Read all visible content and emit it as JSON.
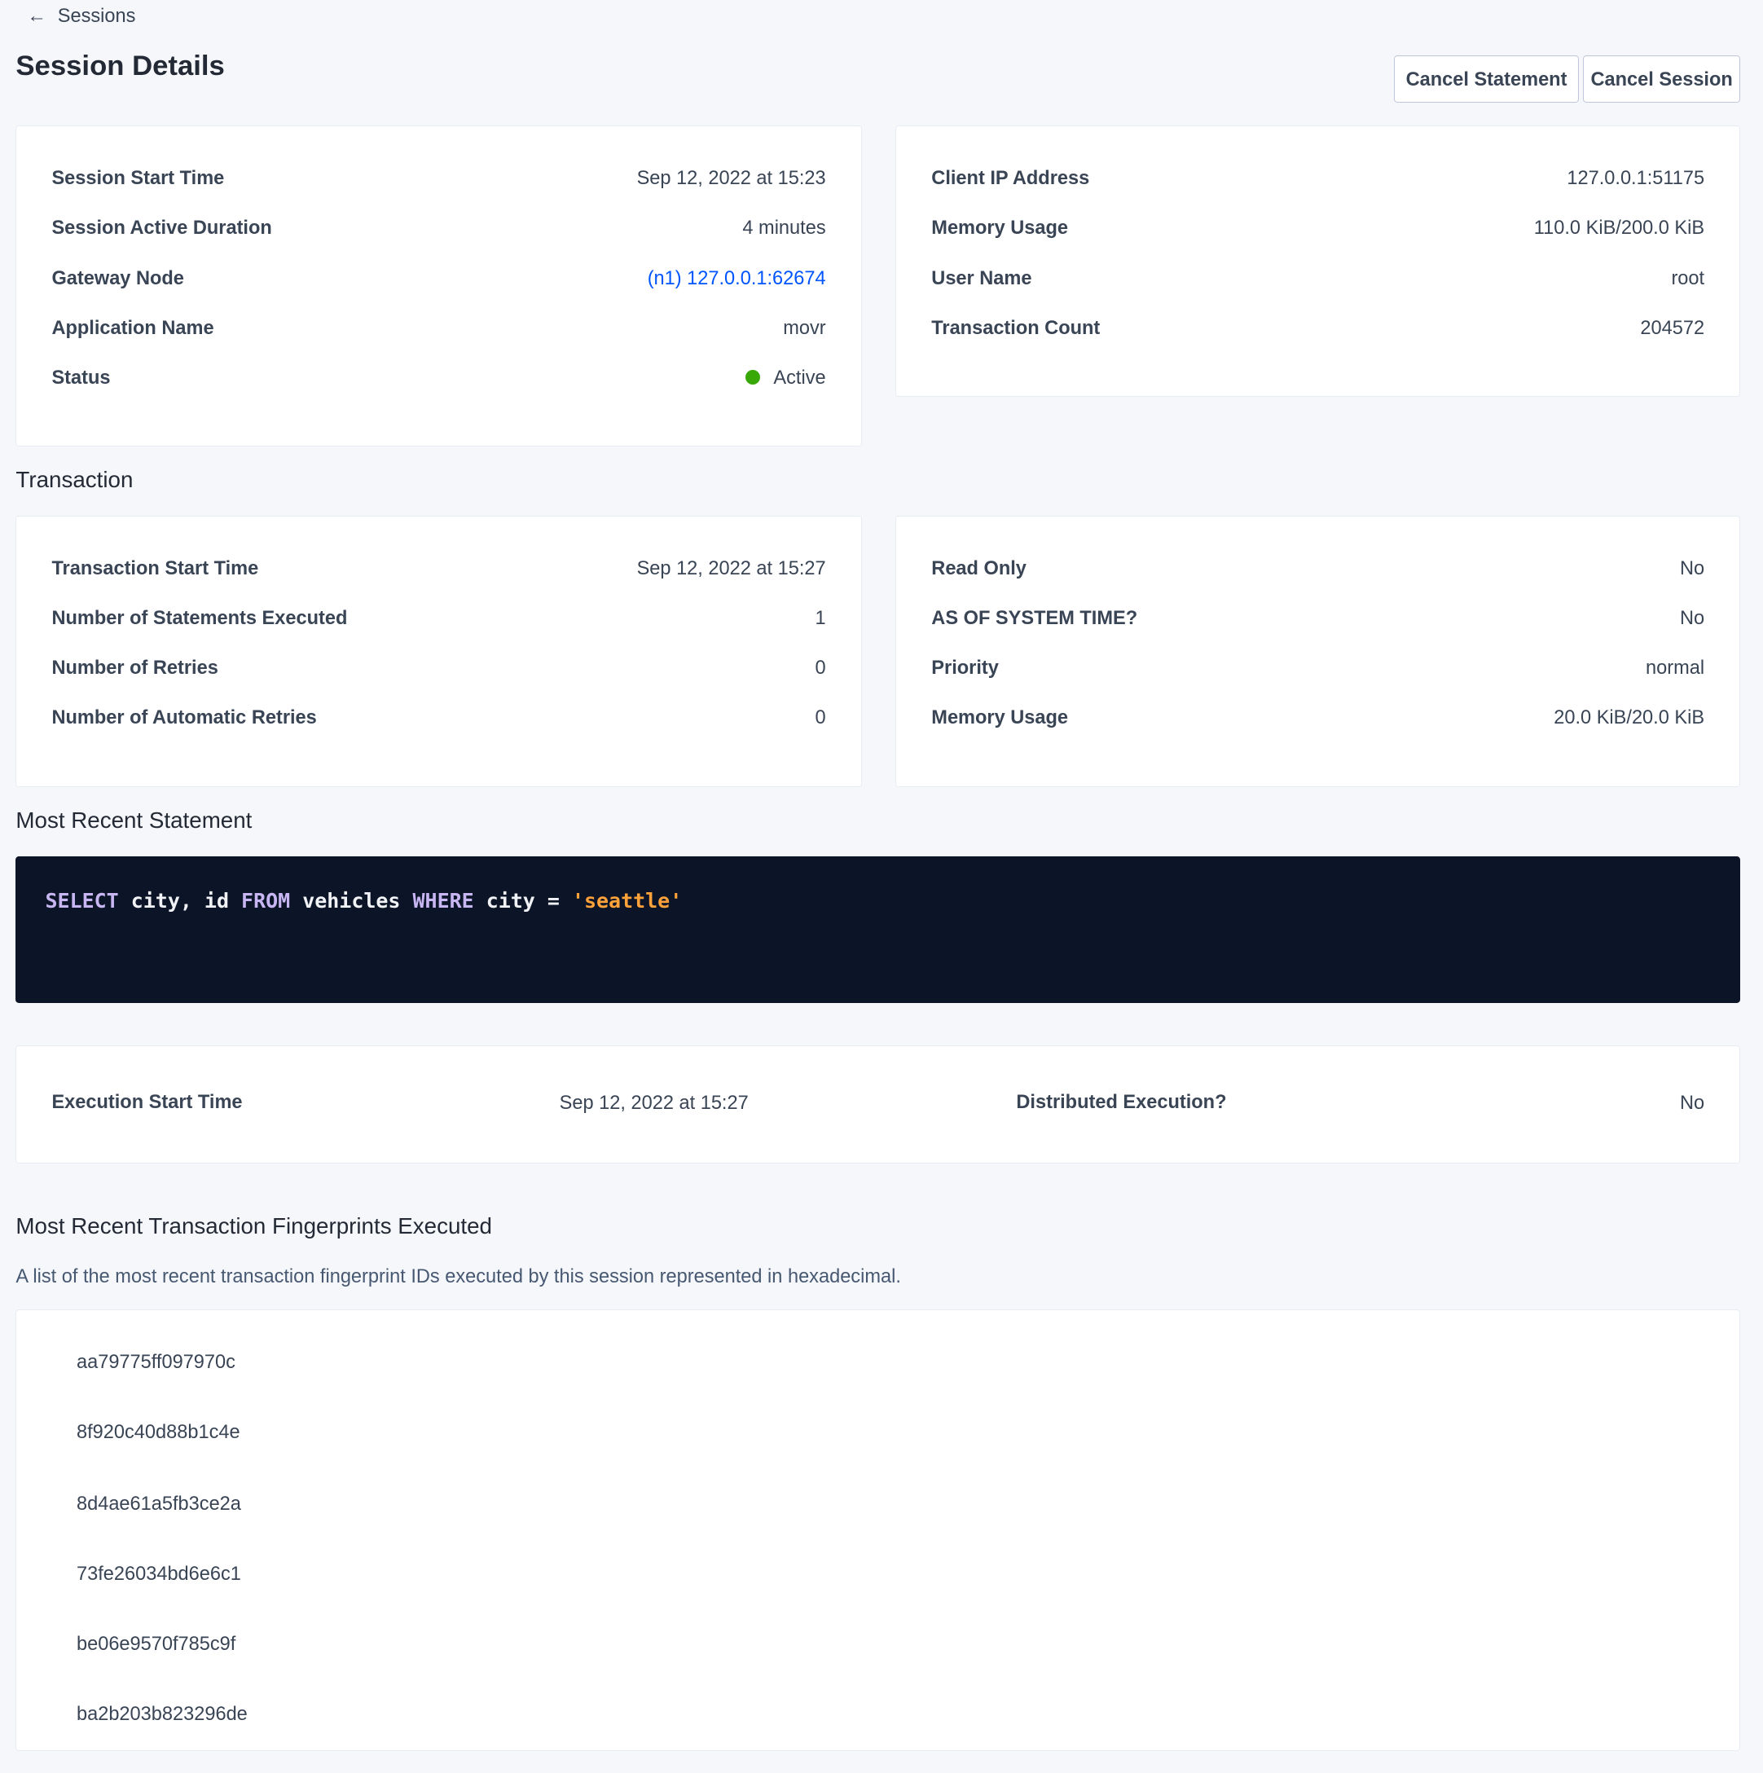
{
  "breadcrumb": {
    "back_label": "Sessions",
    "icon": "arrow-left-icon"
  },
  "header": {
    "title": "Session Details",
    "cancel_statement": "Cancel Statement",
    "cancel_session": "Cancel Session"
  },
  "session_left": [
    {
      "label": "Session Start Time",
      "value": "Sep 12, 2022 at 15:23"
    },
    {
      "label": "Session Active Duration",
      "value": "4 minutes"
    },
    {
      "label": "Gateway Node",
      "value": "(n1) 127.0.0.1:62674"
    },
    {
      "label": "Application Name",
      "value": "movr"
    },
    {
      "label": "Status",
      "value": "Active"
    }
  ],
  "session_right": [
    {
      "label": "Client IP Address",
      "value": "127.0.0.1:51175"
    },
    {
      "label": "Memory Usage",
      "value": "110.0 KiB/200.0 KiB"
    },
    {
      "label": "User Name",
      "value": "root"
    },
    {
      "label": "Transaction Count",
      "value": "204572"
    }
  ],
  "transaction": {
    "heading": "Transaction",
    "left": [
      {
        "label": "Transaction Start Time",
        "value": "Sep 12, 2022 at 15:27"
      },
      {
        "label": "Number of Statements Executed",
        "value": "1"
      },
      {
        "label": "Number of Retries",
        "value": "0"
      },
      {
        "label": "Number of Automatic Retries",
        "value": "0"
      }
    ],
    "right": [
      {
        "label": "Read Only",
        "value": "No"
      },
      {
        "label": "AS OF SYSTEM TIME?",
        "value": "No"
      },
      {
        "label": "Priority",
        "value": "normal"
      },
      {
        "label": "Memory Usage",
        "value": "20.0 KiB/20.0 KiB"
      }
    ]
  },
  "statement": {
    "heading": "Most Recent Statement",
    "sql": {
      "k1": "SELECT",
      "t1": " city, id ",
      "k2": "FROM",
      "t2": " vehicles ",
      "k3": "WHERE",
      "t3": " city = ",
      "s1": "'seattle'"
    },
    "exec_start_label": "Execution Start Time",
    "exec_start_value": "Sep 12, 2022 at 15:27",
    "distributed_label": "Distributed Execution?",
    "distributed_value": "No"
  },
  "fingerprints": {
    "heading": "Most Recent Transaction Fingerprints Executed",
    "description": "A list of the most recent transaction fingerprint IDs executed by this session represented in hexadecimal.",
    "items": [
      "aa79775ff097970c",
      "8f920c40d88b1c4e",
      "8d4ae61a5fb3ce2a",
      "73fe26034bd6e6c1",
      "be06e9570f785c9f",
      "ba2b203b823296de"
    ]
  },
  "colors": {
    "background": "#f5f7fa",
    "link": "#0055ff",
    "status_active": "#37a806",
    "code_bg": "#0c1427",
    "keyword": "#c8b6f2",
    "string": "#ffa23a"
  }
}
